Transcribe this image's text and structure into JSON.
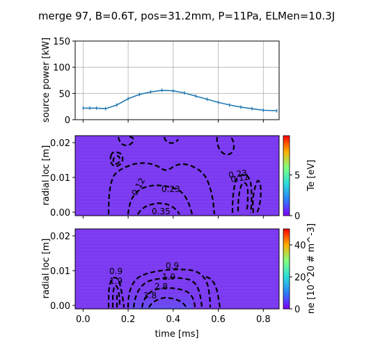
{
  "figure": {
    "title": "merge 97, B=0.6T, pos=31.2mm, P=11Pa, ELMen=10.3J"
  },
  "chart_data": [
    {
      "type": "line",
      "ylabel": "source power [kW]",
      "ylim": [
        0,
        150
      ],
      "xlim": [
        -0.035,
        0.87
      ],
      "xticks": [
        0.0,
        0.2,
        0.4,
        0.6,
        0.8
      ],
      "yticks": [
        0,
        50,
        100,
        150
      ],
      "ytick_labels": [
        "0",
        "50",
        "100",
        "150"
      ],
      "grid": true,
      "color": "#1f77b4",
      "series": [
        {
          "x": [
            0.0,
            0.03,
            0.06,
            0.1,
            0.15,
            0.2,
            0.25,
            0.3,
            0.35,
            0.4,
            0.45,
            0.5,
            0.55,
            0.6,
            0.65,
            0.7,
            0.75,
            0.8,
            0.86
          ],
          "y": [
            22,
            22,
            22,
            21,
            28,
            40,
            48,
            53,
            56,
            55,
            51,
            45,
            39,
            33,
            28,
            24,
            21,
            18,
            17
          ]
        }
      ]
    },
    {
      "type": "heatmap",
      "ylabel": "radial loc [m]",
      "ylim": [
        -0.001,
        0.022
      ],
      "xlim": [
        -0.035,
        0.87
      ],
      "yticks": [
        0.0,
        0.01,
        0.02
      ],
      "ytick_labels": [
        "0.00",
        "0.01",
        "0.02"
      ],
      "fill_color": "#7b3af0",
      "colorbar": {
        "label": "Te [eV]",
        "ticks": [
          0,
          5
        ],
        "tick_labels": [
          "0",
          "5"
        ],
        "range": [
          0,
          9.8
        ]
      },
      "contour_labels": [
        "0.12",
        "0.23",
        "0.35",
        "0.23",
        "0.12"
      ]
    },
    {
      "type": "heatmap",
      "ylabel": "radial loc [m]",
      "xlabel": "time [ms]",
      "ylim": [
        -0.001,
        0.022
      ],
      "xlim": [
        -0.035,
        0.87
      ],
      "xticks": [
        0.0,
        0.2,
        0.4,
        0.6,
        0.8
      ],
      "xtick_labels": [
        "0.0",
        "0.2",
        "0.4",
        "0.6",
        "0.8"
      ],
      "yticks": [
        0.0,
        0.01,
        0.02
      ],
      "ytick_labels": [
        "0.00",
        "0.01",
        "0.02"
      ],
      "fill_color": "#7b3af0",
      "colorbar": {
        "label": "ne [10^20 # m^-3]",
        "ticks": [
          0,
          20,
          40
        ],
        "tick_labels": [
          "0",
          "20",
          "40"
        ],
        "range": [
          0,
          50
        ]
      },
      "contour_labels": [
        "0.9",
        "1.9",
        "0.9",
        "1.9",
        "2.8",
        "3.8"
      ]
    }
  ]
}
